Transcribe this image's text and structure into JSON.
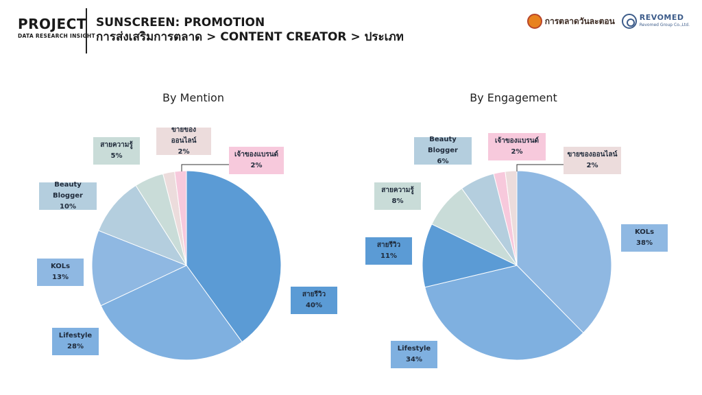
{
  "header": {
    "brand_title": "PROJECT",
    "brand_subtitle": "DATA RESEARCH INSIGHT",
    "title": "SUNSCREEN: PROMOTION",
    "subtitle": "การส่งเสริมการตลาด > CONTENT CREATOR > ประเภท"
  },
  "logos": {
    "logo1_text": "การตลาดวันละตอน",
    "logo2_name": "REVOMED",
    "logo2_tag": "Revomed Group Co.,Ltd."
  },
  "colors": {
    "dark_blue": "#5b9bd5",
    "mid_blue": "#7fb0e0",
    "light_blue": "#8fb8e2",
    "pale_blue": "#b4cede",
    "pale_green": "#c9dcd8",
    "pale_pink": "#ecdcdc",
    "pink": "#f7c9dc"
  },
  "chart_data": [
    {
      "type": "pie",
      "title": "By Mention",
      "slices": [
        {
          "label": "สายรีวิว",
          "value": 40,
          "value_label": "40%",
          "color": "#5b9bd5"
        },
        {
          "label": "Lifestyle",
          "value": 28,
          "value_label": "28%",
          "color": "#7fb0e0"
        },
        {
          "label": "KOLs",
          "value": 13,
          "value_label": "13%",
          "color": "#8fb8e2"
        },
        {
          "label": "Beauty Blogger",
          "value": 10,
          "value_label": "10%",
          "color": "#b4cede"
        },
        {
          "label": "สายความรู้",
          "value": 5,
          "value_label": "5%",
          "color": "#c9dcd8"
        },
        {
          "label": "ขายของออนไลน์",
          "value": 2,
          "value_label": "2%",
          "color": "#ecdcdc"
        },
        {
          "label": "เจ้าของแบรนด์",
          "value": 2,
          "value_label": "2%",
          "color": "#f7c9dc"
        }
      ]
    },
    {
      "type": "pie",
      "title": "By Engagement",
      "slices": [
        {
          "label": "KOLs",
          "value": 38,
          "value_label": "38%",
          "color": "#8fb8e2"
        },
        {
          "label": "Lifestyle",
          "value": 34,
          "value_label": "34%",
          "color": "#7fb0e0"
        },
        {
          "label": "สายรีวิว",
          "value": 11,
          "value_label": "11%",
          "color": "#5b9bd5"
        },
        {
          "label": "สายความรู้",
          "value": 8,
          "value_label": "8%",
          "color": "#c9dcd8"
        },
        {
          "label": "Beauty Blogger",
          "value": 6,
          "value_label": "6%",
          "color": "#b4cede"
        },
        {
          "label": "เจ้าของแบรนด์",
          "value": 2,
          "value_label": "2%",
          "color": "#f7c9dc"
        },
        {
          "label": "ขายของออนไลน์",
          "value": 2,
          "value_label": "2%",
          "color": "#ecdcdc"
        }
      ]
    }
  ]
}
